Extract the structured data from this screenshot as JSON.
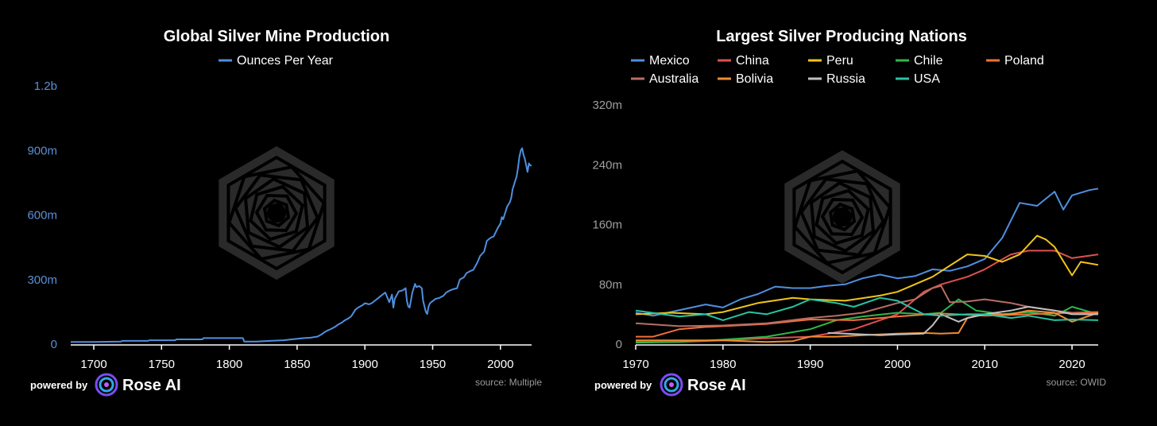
{
  "colors": {
    "background": "#000000",
    "axis_left": "#5b8fd6",
    "axis_right": "#9e9e9e",
    "watermark": "#2a2a2a"
  },
  "branding": {
    "powered_by": "powered by",
    "brand_name": "Rose AI",
    "logo_icon": "rose-ai-logo-icon",
    "watermark_icon": "rose-hexagon-watermark-icon"
  },
  "chart_data": [
    {
      "type": "line",
      "title": "Global Silver Mine Production",
      "source": "source: Multiple",
      "xlabel": "",
      "ylabel": "",
      "xlim": [
        1683,
        2023
      ],
      "ylim": [
        0,
        1200000000
      ],
      "x_ticks": [
        1700,
        1750,
        1800,
        1850,
        1900,
        1950,
        2000
      ],
      "y_ticks": [
        {
          "value": 0,
          "label": "0"
        },
        {
          "value": 300000000,
          "label": "300m"
        },
        {
          "value": 600000000,
          "label": "600m"
        },
        {
          "value": 900000000,
          "label": "900m"
        },
        {
          "value": 1200000000,
          "label": "1.2b"
        }
      ],
      "legend_position": "top-center",
      "grid": false,
      "series": [
        {
          "name": "Ounces Per Year",
          "color": "#4f8fe0",
          "x": [
            1683,
            1700,
            1720,
            1721,
            1740,
            1741,
            1760,
            1761,
            1780,
            1781,
            1800,
            1810,
            1811,
            1820,
            1830,
            1840,
            1850,
            1855,
            1860,
            1865,
            1868,
            1870,
            1872,
            1875,
            1878,
            1880,
            1883,
            1885,
            1888,
            1890,
            1893,
            1895,
            1898,
            1900,
            1903,
            1905,
            1908,
            1910,
            1913,
            1915,
            1918,
            1920,
            1921,
            1922,
            1925,
            1928,
            1930,
            1931,
            1932,
            1933,
            1935,
            1937,
            1938,
            1940,
            1942,
            1943,
            1944,
            1945,
            1946,
            1947,
            1948,
            1950,
            1952,
            1955,
            1958,
            1960,
            1963,
            1965,
            1968,
            1970,
            1973,
            1975,
            1978,
            1980,
            1983,
            1985,
            1988,
            1990,
            1993,
            1995,
            1998,
            2000,
            2001,
            2002,
            2003,
            2005,
            2006,
            2007,
            2008,
            2009,
            2010,
            2011,
            2012,
            2013,
            2014,
            2015,
            2016,
            2017,
            2018,
            2019,
            2020,
            2021,
            2022,
            2023
          ],
          "values": [
            10000000,
            10000000,
            12000000,
            15000000,
            15000000,
            18000000,
            18000000,
            22000000,
            22000000,
            28000000,
            28000000,
            28000000,
            12000000,
            12000000,
            15000000,
            18000000,
            25000000,
            28000000,
            30000000,
            35000000,
            45000000,
            55000000,
            62000000,
            70000000,
            80000000,
            90000000,
            100000000,
            110000000,
            120000000,
            130000000,
            160000000,
            170000000,
            180000000,
            190000000,
            185000000,
            190000000,
            205000000,
            215000000,
            230000000,
            240000000,
            195000000,
            230000000,
            170000000,
            210000000,
            245000000,
            250000000,
            260000000,
            200000000,
            175000000,
            170000000,
            240000000,
            280000000,
            265000000,
            270000000,
            260000000,
            200000000,
            175000000,
            150000000,
            140000000,
            175000000,
            190000000,
            200000000,
            210000000,
            215000000,
            225000000,
            240000000,
            250000000,
            255000000,
            260000000,
            300000000,
            310000000,
            330000000,
            340000000,
            345000000,
            380000000,
            410000000,
            430000000,
            480000000,
            495000000,
            500000000,
            540000000,
            560000000,
            590000000,
            580000000,
            600000000,
            640000000,
            650000000,
            660000000,
            680000000,
            720000000,
            740000000,
            760000000,
            780000000,
            820000000,
            870000000,
            900000000,
            910000000,
            880000000,
            860000000,
            830000000,
            800000000,
            840000000,
            830000000,
            830000000
          ]
        }
      ]
    },
    {
      "type": "line",
      "title": "Largest Silver Producing Nations",
      "source": "source: OWID",
      "xlabel": "",
      "ylabel": "",
      "xlim": [
        1970,
        2023
      ],
      "ylim": [
        0,
        320000000
      ],
      "x_ticks": [
        1970,
        1980,
        1990,
        2000,
        2010,
        2020
      ],
      "y_ticks": [
        {
          "value": 0,
          "label": "0"
        },
        {
          "value": 80000000,
          "label": "80m"
        },
        {
          "value": 160000000,
          "label": "160m"
        },
        {
          "value": 240000000,
          "label": "240m"
        },
        {
          "value": 320000000,
          "label": "320m"
        }
      ],
      "legend_position": "top",
      "grid": false,
      "series": [
        {
          "name": "Mexico",
          "color": "#4f8fe0",
          "x": [
            1970,
            1972,
            1974,
            1976,
            1978,
            1980,
            1982,
            1984,
            1986,
            1988,
            1990,
            1992,
            1994,
            1996,
            1998,
            2000,
            2002,
            2004,
            2006,
            2008,
            2010,
            2012,
            2014,
            2016,
            2018,
            2019,
            2020,
            2022,
            2023
          ],
          "values": [
            42000000,
            38000000,
            43000000,
            48000000,
            53000000,
            49000000,
            60000000,
            67000000,
            77000000,
            75000000,
            75000000,
            78000000,
            80000000,
            88000000,
            93000000,
            88000000,
            91000000,
            100000000,
            98000000,
            104000000,
            114000000,
            142000000,
            189000000,
            185000000,
            204000000,
            180000000,
            199000000,
            206000000,
            208000000
          ]
        },
        {
          "name": "China",
          "color": "#e05050",
          "x": [
            1970,
            1975,
            1980,
            1985,
            1990,
            1995,
            2000,
            2003,
            2005,
            2008,
            2010,
            2013,
            2015,
            2018,
            2020,
            2023
          ],
          "values": [
            3000000,
            3000000,
            5000000,
            8000000,
            10000000,
            20000000,
            40000000,
            70000000,
            80000000,
            90000000,
            100000000,
            120000000,
            125000000,
            125000000,
            115000000,
            120000000
          ]
        },
        {
          "name": "Peru",
          "color": "#f0c419",
          "x": [
            1970,
            1974,
            1978,
            1980,
            1984,
            1988,
            1990,
            1994,
            1998,
            2000,
            2004,
            2008,
            2010,
            2012,
            2014,
            2016,
            2017,
            2018,
            2020,
            2021,
            2022,
            2023
          ],
          "values": [
            40000000,
            42000000,
            40000000,
            43000000,
            55000000,
            62000000,
            60000000,
            58000000,
            65000000,
            70000000,
            90000000,
            120000000,
            118000000,
            110000000,
            120000000,
            145000000,
            140000000,
            130000000,
            92000000,
            110000000,
            108000000,
            106000000
          ]
        },
        {
          "name": "Chile",
          "color": "#2eb84a",
          "x": [
            1970,
            1975,
            1980,
            1985,
            1990,
            1993,
            1996,
            2000,
            2003,
            2005,
            2007,
            2009,
            2012,
            2015,
            2018,
            2020,
            2023
          ],
          "values": [
            2000000,
            3000000,
            6000000,
            10000000,
            20000000,
            32000000,
            37000000,
            42000000,
            40000000,
            42000000,
            60000000,
            45000000,
            40000000,
            43000000,
            38000000,
            50000000,
            40000000
          ]
        },
        {
          "name": "Poland",
          "color": "#f0703a",
          "x": [
            1970,
            1972,
            1975,
            1978,
            1980,
            1985,
            1990,
            1995,
            2000,
            2005,
            2010,
            2015,
            2020,
            2023
          ],
          "values": [
            10000000,
            10000000,
            20000000,
            23000000,
            24000000,
            27000000,
            33000000,
            32000000,
            37000000,
            41000000,
            38000000,
            40000000,
            42000000,
            43000000
          ]
        },
        {
          "name": "Australia",
          "color": "#b86e62",
          "x": [
            1970,
            1975,
            1980,
            1985,
            1990,
            1993,
            1996,
            2000,
            2002,
            2004,
            2005,
            2006,
            2008,
            2010,
            2013,
            2015,
            2018,
            2020,
            2023
          ],
          "values": [
            28000000,
            24000000,
            25000000,
            28000000,
            35000000,
            38000000,
            42000000,
            55000000,
            60000000,
            75000000,
            78000000,
            56000000,
            57000000,
            60000000,
            55000000,
            50000000,
            45000000,
            42000000,
            40000000
          ]
        },
        {
          "name": "Bolivia",
          "color": "#f08c30",
          "x": [
            1970,
            1975,
            1980,
            1985,
            1988,
            1990,
            1993,
            1996,
            2000,
            2003,
            2005,
            2007,
            2008,
            2010,
            2013,
            2015,
            2018,
            2020,
            2023
          ],
          "values": [
            5000000,
            5000000,
            5000000,
            3000000,
            4000000,
            10000000,
            10000000,
            12000000,
            14000000,
            15000000,
            14000000,
            15000000,
            35000000,
            40000000,
            40000000,
            45000000,
            42000000,
            30000000,
            42000000
          ]
        },
        {
          "name": "Russia",
          "color": "#c0c0c0",
          "x": [
            1992,
            1994,
            1996,
            1998,
            2000,
            2003,
            2004,
            2005,
            2006,
            2007,
            2008,
            2010,
            2013,
            2015,
            2018,
            2020,
            2023
          ],
          "values": [
            15000000,
            14000000,
            13000000,
            12000000,
            13000000,
            14000000,
            25000000,
            40000000,
            35000000,
            30000000,
            35000000,
            40000000,
            45000000,
            50000000,
            45000000,
            40000000,
            40000000
          ]
        },
        {
          "name": "USA",
          "color": "#26c4a4",
          "x": [
            1970,
            1975,
            1978,
            1980,
            1983,
            1985,
            1988,
            1990,
            1993,
            1995,
            1998,
            2000,
            2003,
            2005,
            2008,
            2010,
            2013,
            2015,
            2018,
            2020,
            2023
          ],
          "values": [
            45000000,
            37000000,
            40000000,
            32000000,
            43000000,
            40000000,
            50000000,
            60000000,
            55000000,
            50000000,
            62000000,
            58000000,
            40000000,
            38000000,
            40000000,
            40000000,
            35000000,
            38000000,
            32000000,
            33000000,
            32000000
          ]
        }
      ]
    }
  ]
}
